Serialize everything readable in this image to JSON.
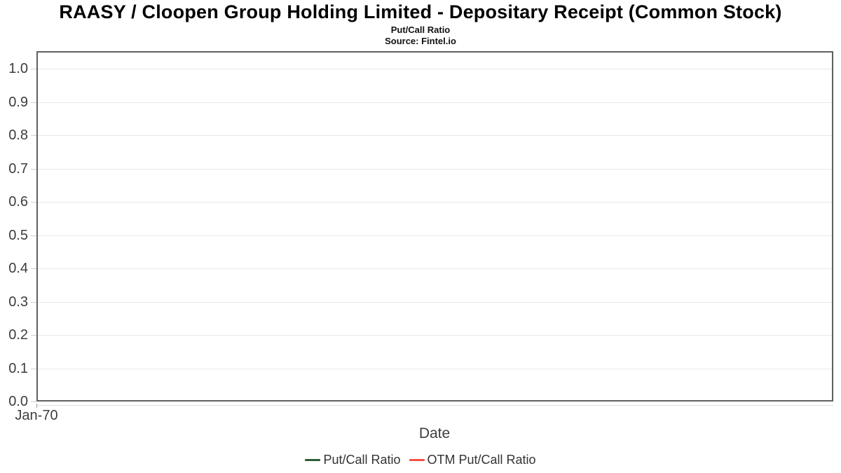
{
  "header": {
    "title": "RAASY / Cloopen Group Holding Limited - Depositary Receipt (Common Stock)",
    "subtitle": "Put/Call Ratio",
    "source": "Source: Fintel.io"
  },
  "chart_data": {
    "type": "line",
    "title": "RAASY / Cloopen Group Holding Limited - Depositary Receipt (Common Stock)",
    "subtitle": "Put/Call Ratio",
    "source": "Source: Fintel.io",
    "xlabel": "Date",
    "ylabel": "",
    "xticks": [
      "Jan-70"
    ],
    "yticks": [
      "0.0",
      "0.1",
      "0.2",
      "0.3",
      "0.4",
      "0.5",
      "0.6",
      "0.7",
      "0.8",
      "0.9",
      "1.0"
    ],
    "ylim": [
      0,
      1.053
    ],
    "grid": true,
    "legend_position": "bottom",
    "series": [
      {
        "name": "Put/Call Ratio",
        "color": "#2d5e35",
        "x": [],
        "values": []
      },
      {
        "name": "OTM Put/Call Ratio",
        "color": "#f45046",
        "x": [],
        "values": []
      }
    ]
  },
  "colors": {
    "put_call_line": "#2d5e35",
    "otm_put_call_line": "#f45046"
  }
}
